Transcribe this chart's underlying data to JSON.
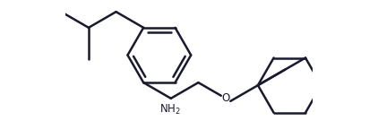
{
  "bg_color": "#ffffff",
  "line_color": "#1a1a2e",
  "line_width": 1.8,
  "fig_width": 4.22,
  "fig_height": 1.35,
  "dpi": 100,
  "nh2_label": "NH$_2$",
  "o_label": "O"
}
